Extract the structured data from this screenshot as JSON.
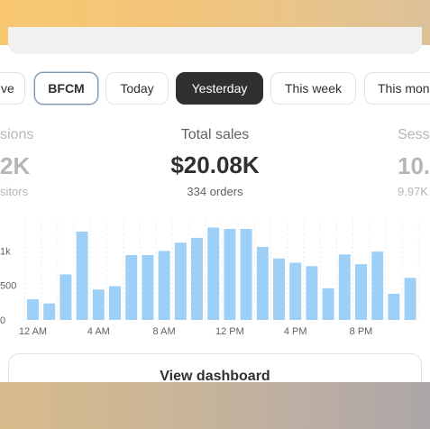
{
  "filters": {
    "partial_left": "ve",
    "bfcm": "BFCM",
    "today": "Today",
    "yesterday": "Yesterday",
    "this_week": "This week",
    "partial_right": "This mon"
  },
  "metrics": {
    "left": {
      "label": "sions",
      "value": "2K",
      "sub": "sitors"
    },
    "center": {
      "label": "Total sales",
      "value": "$20.08K",
      "sub": "334 orders"
    },
    "right": {
      "label": "Sess",
      "value": "10.",
      "sub": "9.97K"
    }
  },
  "chart_data": {
    "type": "bar",
    "color": "#9ed0f7",
    "categories": [
      "12 AM",
      "1 AM",
      "2 AM",
      "3 AM",
      "4 AM",
      "5 AM",
      "6 AM",
      "7 AM",
      "8 AM",
      "9 AM",
      "10 AM",
      "11 AM",
      "12 PM",
      "1 PM",
      "2 PM",
      "3 PM",
      "4 PM",
      "5 PM",
      "6 PM",
      "7 PM",
      "8 PM",
      "9 PM",
      "10 PM",
      "11 PM"
    ],
    "values": [
      300,
      240,
      660,
      1280,
      440,
      490,
      940,
      940,
      1000,
      1120,
      1190,
      1340,
      1320,
      1320,
      1060,
      890,
      830,
      780,
      460,
      950,
      810,
      990,
      380,
      610
    ],
    "y_ticks": [
      "0",
      "500",
      "1k"
    ],
    "x_tick_labels": [
      "12 AM",
      "4 AM",
      "8 AM",
      "12 PM",
      "4 PM",
      "8 PM"
    ],
    "ylim": [
      0,
      1450
    ],
    "grid": "vertical dashed"
  },
  "actions": {
    "view_dashboard": "View dashboard"
  }
}
